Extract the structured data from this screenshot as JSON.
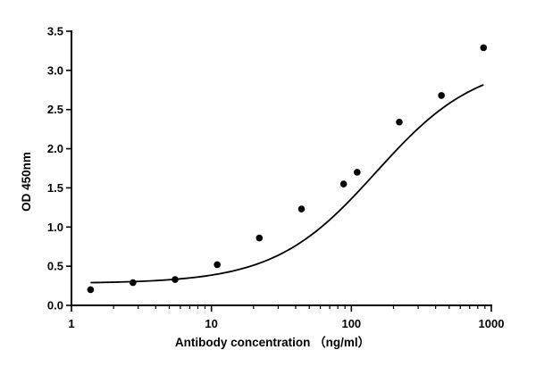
{
  "chart_data": {
    "type": "scatter",
    "xlabel": "Antibody concentration （ng/ml）",
    "ylabel": "OD 450nm",
    "x_scale": "log",
    "xlim": [
      1,
      1000
    ],
    "ylim": [
      0,
      3.5
    ],
    "x_ticks": [
      1,
      10,
      100,
      1000
    ],
    "x_tick_labels": [
      "1",
      "10",
      "100",
      "1000"
    ],
    "y_ticks": [
      0.0,
      0.5,
      1.0,
      1.5,
      2.0,
      2.5,
      3.0,
      3.5
    ],
    "y_tick_labels": [
      "0.0",
      "0.5",
      "1.0",
      "1.5",
      "2.0",
      "2.5",
      "3.0",
      "3.5"
    ],
    "grid": false,
    "legend": "none",
    "series": [
      {
        "kind": "points",
        "x": [
          1.37,
          2.75,
          5.5,
          11,
          22,
          44,
          88,
          110,
          220,
          440,
          880
        ],
        "y": [
          0.2,
          0.29,
          0.33,
          0.52,
          0.86,
          1.23,
          1.55,
          1.7,
          2.34,
          2.68,
          3.29
        ]
      },
      {
        "kind": "fit-curve",
        "model": "4PL",
        "bottom": 0.28,
        "top": 3.12,
        "ec50": 150,
        "hill": 1.2,
        "x_range": [
          1.37,
          880
        ]
      }
    ]
  }
}
